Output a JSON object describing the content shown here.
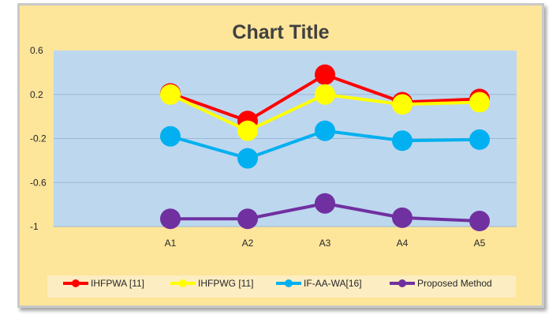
{
  "chart_data": {
    "type": "line",
    "title": "Chart Title",
    "categories": [
      "A1",
      "A2",
      "A3",
      "A4",
      "A5"
    ],
    "ylim": [
      -1,
      0.6
    ],
    "yticks": [
      0.6,
      0.2,
      -0.2,
      -0.6,
      -1
    ],
    "ytick_labels": [
      "0.6",
      "0.2",
      "-0.2",
      "-0.6",
      "-1"
    ],
    "grid": true,
    "legend_position": "bottom",
    "series": [
      {
        "name": "IHFPWA [11]",
        "color": "#ff0000",
        "values": [
          0.21,
          -0.04,
          0.38,
          0.13,
          0.16
        ]
      },
      {
        "name": "IHFPWG [11]",
        "color": "#ffff00",
        "values": [
          0.2,
          -0.13,
          0.2,
          0.11,
          0.13
        ]
      },
      {
        "name": "IF-AA-WA[16]",
        "color": "#00b0f0",
        "values": [
          -0.18,
          -0.38,
          -0.13,
          -0.22,
          -0.21
        ]
      },
      {
        "name": "Proposed Method",
        "color": "#7030a0",
        "values": [
          -0.93,
          -0.93,
          -0.79,
          -0.92,
          -0.95
        ]
      }
    ]
  },
  "colors": {
    "frame_background": "#fde59a",
    "plot_background": "#bdd7ee",
    "legend_background": "#fdedc2"
  }
}
